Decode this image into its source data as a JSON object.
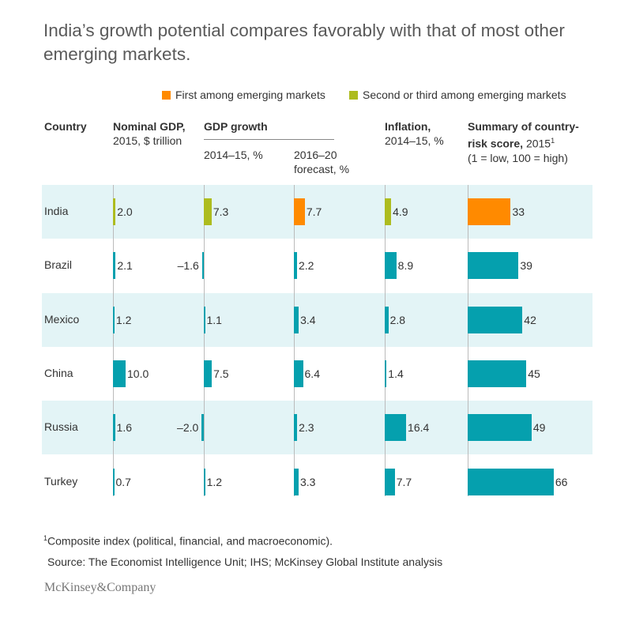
{
  "title": "India’s growth potential compares favorably with that of most other emerging markets.",
  "legend": [
    {
      "label": "First among emerging markets",
      "color": "#ff8a00"
    },
    {
      "label": "Second or third among emerging markets",
      "color": "#adbc1f"
    }
  ],
  "headers": {
    "country": "Country",
    "gdp_bold": "Nominal GDP,",
    "gdp_rest": " 2015, $ trillion",
    "growth_group": "GDP growth",
    "growth_1415": "2014–15, %",
    "growth_1620": "2016–20 forecast, %",
    "inflation_bold": "Inflation,",
    "inflation_rest": " 2014–15, %",
    "risk_bold": "Summary of country-risk score,",
    "risk_rest": " 2015",
    "risk_sup": "1",
    "risk_scale": "(1 = low, 100 = high)"
  },
  "colors": {
    "default": "#05a0ae",
    "first": "#ff8a00",
    "second_third": "#adbc1f",
    "row_shade": "#e3f4f6"
  },
  "chart_data": {
    "type": "table",
    "columns": [
      "Nominal GDP, 2015, $ trillion",
      "GDP growth 2014–15, %",
      "GDP growth 2016–20 forecast, %",
      "Inflation, 2014–15, %",
      "Summary of country-risk score, 2015 (1 = low, 100 = high)"
    ],
    "rows": [
      {
        "country": "India",
        "values": [
          2.0,
          7.3,
          7.7,
          4.9,
          33
        ],
        "labels": [
          "2.0",
          "7.3",
          "7.7",
          "4.9",
          "33"
        ],
        "rank": [
          "second_third",
          "second_third",
          "first",
          "second_third",
          "first"
        ]
      },
      {
        "country": "Brazil",
        "values": [
          2.1,
          -1.6,
          2.2,
          8.9,
          39
        ],
        "labels": [
          "2.1",
          "–1.6",
          "2.2",
          "8.9",
          "39"
        ],
        "rank": [
          "default",
          "default",
          "default",
          "default",
          "default"
        ]
      },
      {
        "country": "Mexico",
        "values": [
          1.2,
          1.1,
          3.4,
          2.8,
          42
        ],
        "labels": [
          "1.2",
          "1.1",
          "3.4",
          "2.8",
          "42"
        ],
        "rank": [
          "default",
          "default",
          "default",
          "default",
          "default"
        ]
      },
      {
        "country": "China",
        "values": [
          10.0,
          7.5,
          6.4,
          1.4,
          45
        ],
        "labels": [
          "10.0",
          "7.5",
          "6.4",
          "1.4",
          "45"
        ],
        "rank": [
          "default",
          "default",
          "default",
          "default",
          "default"
        ]
      },
      {
        "country": "Russia",
        "values": [
          1.6,
          -2.0,
          2.3,
          16.4,
          49
        ],
        "labels": [
          "1.6",
          "–2.0",
          "2.3",
          "16.4",
          "49"
        ],
        "rank": [
          "default",
          "default",
          "default",
          "default",
          "default"
        ]
      },
      {
        "country": "Turkey",
        "values": [
          0.7,
          1.2,
          3.3,
          7.7,
          66
        ],
        "labels": [
          "0.7",
          "1.2",
          "3.3",
          "7.7",
          "66"
        ],
        "rank": [
          "default",
          "default",
          "default",
          "default",
          "default"
        ]
      }
    ]
  },
  "footnote_sup": "1",
  "footnote": "Composite index (political, financial, and macroeconomic).",
  "source": "Source: The Economist Intelligence Unit; IHS; McKinsey Global Institute analysis",
  "logo": "McKinsey&Company"
}
